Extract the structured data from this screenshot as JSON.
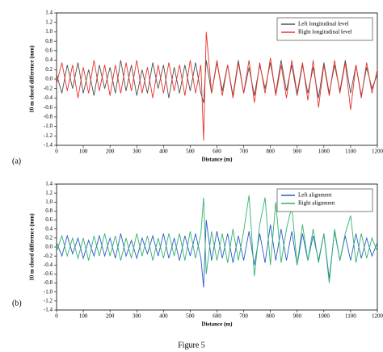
{
  "chart_data": [
    {
      "type": "line",
      "panel_label": "(a)",
      "ylabel": "10 m chord difference (mm)",
      "xlabel": "Distance (m)",
      "xlim": [
        0,
        1200
      ],
      "xticks": [
        0,
        100,
        200,
        300,
        400,
        500,
        600,
        700,
        800,
        900,
        1000,
        1100,
        1200
      ],
      "ylim": [
        -1.4,
        1.4
      ],
      "yticks": [
        -1.4,
        -1.2,
        {
          "value": -1,
          "label": "-1.0"
        },
        -0.8,
        -0.6,
        -0.4,
        -0.2,
        {
          "value": 0,
          "label": "0.0"
        },
        0.2,
        0.4,
        0.6,
        0.8,
        {
          "value": 1,
          "label": "1.0"
        },
        1.2,
        1.4
      ],
      "legend": "upper right",
      "x": [
        0,
        20,
        40,
        60,
        80,
        100,
        120,
        140,
        160,
        180,
        200,
        220,
        240,
        260,
        280,
        300,
        320,
        340,
        360,
        380,
        400,
        420,
        440,
        460,
        480,
        500,
        520,
        540,
        550,
        560,
        580,
        600,
        620,
        640,
        660,
        680,
        700,
        720,
        740,
        760,
        780,
        800,
        820,
        840,
        860,
        880,
        900,
        920,
        940,
        960,
        980,
        1000,
        1020,
        1040,
        1060,
        1080,
        1100,
        1120,
        1140,
        1160,
        1180,
        1200
      ],
      "series": [
        {
          "name": "Left longitudinal level",
          "color": "#505050",
          "values": [
            0.1,
            -0.3,
            0.3,
            -0.2,
            0.35,
            -0.3,
            0.2,
            -0.35,
            0.3,
            -0.2,
            0.25,
            -0.3,
            0.4,
            -0.25,
            0.3,
            -0.35,
            0.2,
            -0.3,
            0.35,
            -0.2,
            0.3,
            -0.4,
            0.25,
            -0.3,
            0.3,
            -0.25,
            0.35,
            -0.3,
            -0.5,
            0.4,
            -0.3,
            0.35,
            -0.25,
            0.3,
            -0.35,
            0.4,
            -0.3,
            0.25,
            -0.35,
            0.3,
            -0.2,
            0.35,
            -0.3,
            0.4,
            -0.25,
            0.3,
            -0.35,
            0.3,
            -0.3,
            0.25,
            -0.4,
            0.35,
            -0.3,
            0.3,
            -0.25,
            0.4,
            -0.3,
            0.3,
            -0.35,
            0.25,
            -0.2,
            0.1
          ]
        },
        {
          "name": "Right longitudinal level",
          "color": "#e8322b",
          "values": [
            -0.1,
            0.35,
            -0.25,
            0.3,
            -0.4,
            0.25,
            -0.3,
            0.4,
            -0.25,
            0.3,
            -0.35,
            0.3,
            -0.3,
            0.35,
            -0.25,
            0.4,
            -0.3,
            0.25,
            -0.4,
            0.3,
            -0.3,
            0.35,
            -0.25,
            0.3,
            -0.35,
            0.4,
            -0.3,
            0.3,
            -1.3,
            1.0,
            -0.3,
            0.4,
            -0.35,
            0.3,
            -0.4,
            0.35,
            -0.3,
            0.4,
            -0.5,
            0.35,
            -0.3,
            0.45,
            -0.35,
            0.3,
            -0.4,
            0.4,
            -0.3,
            0.35,
            -0.45,
            0.4,
            -0.6,
            0.3,
            -0.35,
            0.4,
            -0.3,
            0.35,
            -0.65,
            0.3,
            -0.4,
            0.35,
            -0.3,
            0.2
          ]
        }
      ]
    },
    {
      "type": "line",
      "panel_label": "(b)",
      "ylabel": "10 m chord difference (mm)",
      "xlabel": "Distance (m)",
      "xlim": [
        0,
        1200
      ],
      "xticks": [
        0,
        100,
        200,
        300,
        400,
        500,
        600,
        700,
        800,
        900,
        1000,
        1100,
        1200
      ],
      "ylim": [
        -1.4,
        1.4
      ],
      "yticks": [
        -1.4,
        -1.2,
        {
          "value": -1,
          "label": "-1.0"
        },
        -0.8,
        -0.6,
        -0.4,
        -0.2,
        {
          "value": 0,
          "label": "0.0"
        },
        0.2,
        0.4,
        0.6,
        0.8,
        {
          "value": 1,
          "label": "1.0"
        },
        1.2,
        1.4
      ],
      "legend": "upper right",
      "x": [
        0,
        20,
        40,
        60,
        80,
        100,
        120,
        140,
        160,
        180,
        200,
        220,
        240,
        260,
        280,
        300,
        320,
        340,
        360,
        380,
        400,
        420,
        440,
        460,
        480,
        500,
        520,
        540,
        550,
        560,
        580,
        600,
        620,
        640,
        660,
        680,
        700,
        720,
        740,
        760,
        780,
        800,
        820,
        840,
        860,
        880,
        900,
        920,
        940,
        960,
        980,
        1000,
        1020,
        1040,
        1060,
        1080,
        1100,
        1120,
        1140,
        1160,
        1180,
        1200
      ],
      "series": [
        {
          "name": "Left alignment",
          "color": "#2a5cc8",
          "values": [
            0.1,
            -0.2,
            0.25,
            -0.15,
            0.2,
            -0.25,
            0.15,
            -0.2,
            0.25,
            -0.2,
            0.2,
            -0.25,
            0.3,
            -0.2,
            0.15,
            -0.25,
            0.2,
            -0.15,
            0.25,
            -0.2,
            0.3,
            -0.25,
            0.2,
            -0.3,
            0.25,
            -0.2,
            0.3,
            -0.25,
            -0.9,
            0.6,
            -0.3,
            0.35,
            -0.25,
            0.3,
            -0.35,
            0.25,
            -0.3,
            0.35,
            -0.4,
            0.3,
            -0.35,
            0.5,
            -0.3,
            0.4,
            -0.3,
            0.35,
            -0.4,
            0.3,
            -0.3,
            0.25,
            -0.3,
            0.3,
            -0.7,
            0.35,
            -0.3,
            0.25,
            -0.3,
            0.3,
            -0.25,
            0.2,
            -0.2,
            0.1
          ]
        },
        {
          "name": "Right alignment",
          "color": "#2fb36e",
          "values": [
            -0.1,
            0.25,
            -0.2,
            0.2,
            -0.25,
            0.2,
            -0.3,
            0.25,
            -0.2,
            0.3,
            -0.2,
            0.25,
            -0.3,
            0.2,
            -0.25,
            0.3,
            -0.2,
            0.25,
            -0.3,
            0.2,
            -0.25,
            0.3,
            -0.2,
            0.3,
            -0.3,
            0.35,
            -0.25,
            0.3,
            1.1,
            -0.6,
            0.35,
            -0.3,
            0.3,
            -0.35,
            0.4,
            -0.3,
            0.35,
            1.15,
            -0.65,
            0.5,
            1.1,
            -0.4,
            1.0,
            -0.35,
            0.4,
            0.9,
            -0.4,
            0.5,
            -0.3,
            0.4,
            -0.35,
            0.3,
            -0.8,
            0.4,
            -0.3,
            0.3,
            0.7,
            -0.35,
            0.3,
            -0.25,
            0.2,
            -0.1
          ]
        }
      ]
    }
  ],
  "caption": "Figure 5"
}
